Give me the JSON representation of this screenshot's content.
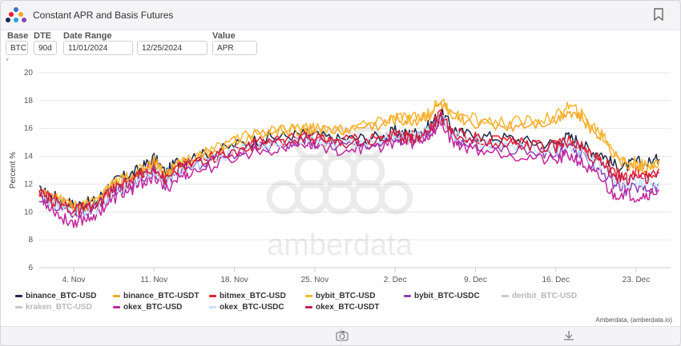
{
  "header": {
    "title": "Constant APR and Basis Futures"
  },
  "controls": [
    {
      "label": "Base",
      "value": "BTC"
    },
    {
      "label": "DTE",
      "value": "90d"
    },
    {
      "label": "Date Range",
      "value": "11/01/2024"
    },
    {
      "label": "",
      "value": "12/25/2024"
    },
    {
      "label": "Value",
      "value": "APR"
    }
  ],
  "collapse_glyph": "˅",
  "watermark": "amberdata",
  "credit": "Amberdata, (amberdata.io)",
  "icons": {
    "logo": "amberdata-logo-icon",
    "bookmark": "bookmark-icon",
    "camera": "camera-icon",
    "download": "download-icon"
  },
  "chart_data": {
    "type": "line",
    "title": "",
    "xlabel": "",
    "ylabel": "Percent %",
    "ylim": [
      6,
      20
    ],
    "yticks": [
      6,
      8,
      10,
      12,
      14,
      16,
      18,
      20
    ],
    "xlim": [
      "2024-11-01",
      "2024-12-26"
    ],
    "xticks": [
      {
        "date": "2024-11-04",
        "label": "4. Nov"
      },
      {
        "date": "2024-11-11",
        "label": "11. Nov"
      },
      {
        "date": "2024-11-18",
        "label": "18. Nov"
      },
      {
        "date": "2024-11-25",
        "label": "25. Nov"
      },
      {
        "date": "2024-12-02",
        "label": "2. Dec"
      },
      {
        "date": "2024-12-09",
        "label": "9. Dec"
      },
      {
        "date": "2024-12-16",
        "label": "16. Dec"
      },
      {
        "date": "2024-12-23",
        "label": "23. Dec"
      }
    ],
    "grid": "horizontal",
    "legend_position": "bottom",
    "base_dates": [
      "2024-11-01",
      "2024-11-02",
      "2024-11-03",
      "2024-11-04",
      "2024-11-05",
      "2024-11-06",
      "2024-11-07",
      "2024-11-08",
      "2024-11-09",
      "2024-11-10",
      "2024-11-11",
      "2024-11-12",
      "2024-11-13",
      "2024-11-14",
      "2024-11-16",
      "2024-11-18",
      "2024-11-20",
      "2024-11-22",
      "2024-11-24",
      "2024-11-25",
      "2024-11-27",
      "2024-11-29",
      "2024-12-01",
      "2024-12-02",
      "2024-12-03",
      "2024-12-04",
      "2024-12-05",
      "2024-12-06",
      "2024-12-07",
      "2024-12-08",
      "2024-12-10",
      "2024-12-12",
      "2024-12-14",
      "2024-12-16",
      "2024-12-17",
      "2024-12-18",
      "2024-12-19",
      "2024-12-20",
      "2024-12-21",
      "2024-12-22",
      "2024-12-23",
      "2024-12-24",
      "2024-12-25"
    ],
    "series": [
      {
        "name": "binance_BTC-USD",
        "color": "#1b2a4a",
        "visible": true,
        "values": [
          11.5,
          11.2,
          10.9,
          10.5,
          10.6,
          10.8,
          11.8,
          12.4,
          12.7,
          13.2,
          13.9,
          12.8,
          13.6,
          13.9,
          14.2,
          14.8,
          15.2,
          15.4,
          15.6,
          15.5,
          15.2,
          15.3,
          15.4,
          15.8,
          15.6,
          15.7,
          16.2,
          17.2,
          16.0,
          15.6,
          15.4,
          15.3,
          15.0,
          14.9,
          15.4,
          15.1,
          14.4,
          14.2,
          13.4,
          13.2,
          13.6,
          13.5,
          13.8
        ]
      },
      {
        "name": "binance_BTC-USDT",
        "color": "#f5a623",
        "visible": true,
        "values": [
          11.4,
          11.0,
          10.7,
          10.3,
          10.4,
          10.6,
          11.6,
          12.2,
          12.5,
          13.0,
          13.6,
          12.6,
          13.4,
          13.8,
          14.3,
          15.0,
          15.6,
          15.8,
          16.0,
          15.9,
          15.8,
          16.1,
          16.3,
          16.7,
          16.5,
          16.6,
          17.0,
          17.8,
          16.8,
          16.6,
          16.3,
          16.2,
          16.4,
          16.6,
          17.3,
          16.9,
          16.0,
          15.5,
          14.3,
          13.4,
          13.3,
          13.0,
          13.4
        ]
      },
      {
        "name": "bitmex_BTC-USD",
        "color": "#e8202a",
        "visible": true,
        "values": [
          11.3,
          11.0,
          10.6,
          10.2,
          10.3,
          10.5,
          11.4,
          12.0,
          12.3,
          12.8,
          13.4,
          12.4,
          13.2,
          13.5,
          13.9,
          14.5,
          15.0,
          15.2,
          15.4,
          15.3,
          15.1,
          15.2,
          15.3,
          15.6,
          15.4,
          15.5,
          16.0,
          17.0,
          15.8,
          15.4,
          15.2,
          15.0,
          14.8,
          14.7,
          15.2,
          14.8,
          14.1,
          13.8,
          12.9,
          12.4,
          12.8,
          12.6,
          13.1
        ]
      },
      {
        "name": "bybit_BTC-USD",
        "color": "#f7b733",
        "visible": true,
        "values": [
          11.4,
          11.1,
          10.8,
          10.4,
          10.5,
          10.7,
          11.7,
          12.3,
          12.6,
          13.1,
          13.7,
          12.7,
          13.5,
          13.9,
          14.4,
          15.1,
          15.7,
          15.9,
          16.1,
          16.0,
          15.9,
          16.2,
          16.4,
          16.9,
          16.7,
          16.8,
          17.2,
          18.0,
          17.0,
          16.8,
          16.5,
          16.4,
          16.6,
          16.8,
          17.6,
          17.2,
          16.3,
          15.7,
          14.5,
          13.6,
          13.5,
          13.2,
          13.7
        ]
      },
      {
        "name": "bybit_BTC-USDC",
        "color": "#8e3fb6",
        "visible": true,
        "values": [
          11.0,
          10.7,
          10.3,
          9.9,
          10.0,
          10.2,
          11.0,
          11.6,
          11.9,
          12.4,
          13.0,
          12.0,
          12.8,
          13.2,
          13.6,
          14.2,
          14.7,
          14.9,
          15.1,
          15.0,
          14.8,
          14.9,
          15.0,
          15.3,
          15.1,
          15.2,
          15.7,
          16.6,
          15.4,
          15.0,
          14.7,
          14.5,
          14.3,
          14.1,
          14.6,
          14.2,
          13.5,
          13.0,
          12.0,
          11.6,
          11.8,
          11.6,
          11.9
        ]
      },
      {
        "name": "deribit_BTC-USD",
        "color": "#c8c8cc",
        "visible": false,
        "values": []
      },
      {
        "name": "kraken_BTC-USD",
        "color": "#c8c8cc",
        "visible": false,
        "values": []
      },
      {
        "name": "okex_BTC-USD",
        "color": "#c2259c",
        "visible": true,
        "values": [
          10.8,
          10.4,
          9.5,
          9.3,
          9.5,
          9.9,
          10.6,
          11.2,
          11.6,
          12.1,
          12.6,
          11.6,
          12.4,
          12.8,
          13.2,
          13.9,
          14.4,
          14.6,
          14.9,
          14.8,
          14.5,
          14.6,
          14.7,
          15.1,
          14.9,
          15.0,
          15.5,
          16.4,
          15.1,
          14.7,
          14.4,
          14.2,
          13.9,
          13.6,
          14.1,
          13.7,
          12.9,
          12.3,
          11.2,
          11.4,
          11.1,
          11.3,
          11.6
        ]
      },
      {
        "name": "okex_BTC-USDC",
        "color": "#bfe3f7",
        "visible": true,
        "values": [
          11.1,
          10.8,
          10.4,
          10.0,
          10.1,
          10.3,
          11.1,
          11.7,
          12.0,
          12.5,
          13.1,
          12.1,
          12.9,
          13.3,
          13.7,
          14.3,
          14.8,
          15.0,
          15.2,
          15.1,
          14.9,
          15.0,
          15.2,
          15.5,
          15.3,
          15.4,
          15.9,
          16.8,
          15.6,
          15.2,
          14.9,
          14.7,
          14.6,
          14.4,
          14.9,
          14.5,
          13.8,
          13.4,
          12.5,
          12.0,
          12.2,
          12.0,
          12.2
        ]
      },
      {
        "name": "okex_BTC-USDT",
        "color": "#c81e4a",
        "visible": true,
        "values": [
          11.2,
          10.9,
          10.5,
          10.1,
          10.2,
          10.4,
          11.3,
          11.9,
          12.2,
          12.7,
          13.3,
          12.3,
          13.1,
          13.4,
          13.8,
          14.4,
          14.9,
          15.1,
          15.3,
          15.2,
          15.0,
          15.1,
          15.2,
          15.5,
          15.3,
          15.4,
          15.9,
          16.9,
          15.7,
          15.3,
          15.1,
          14.9,
          14.7,
          14.6,
          15.1,
          14.7,
          14.0,
          13.6,
          12.7,
          12.2,
          12.6,
          12.4,
          12.8
        ]
      }
    ]
  }
}
